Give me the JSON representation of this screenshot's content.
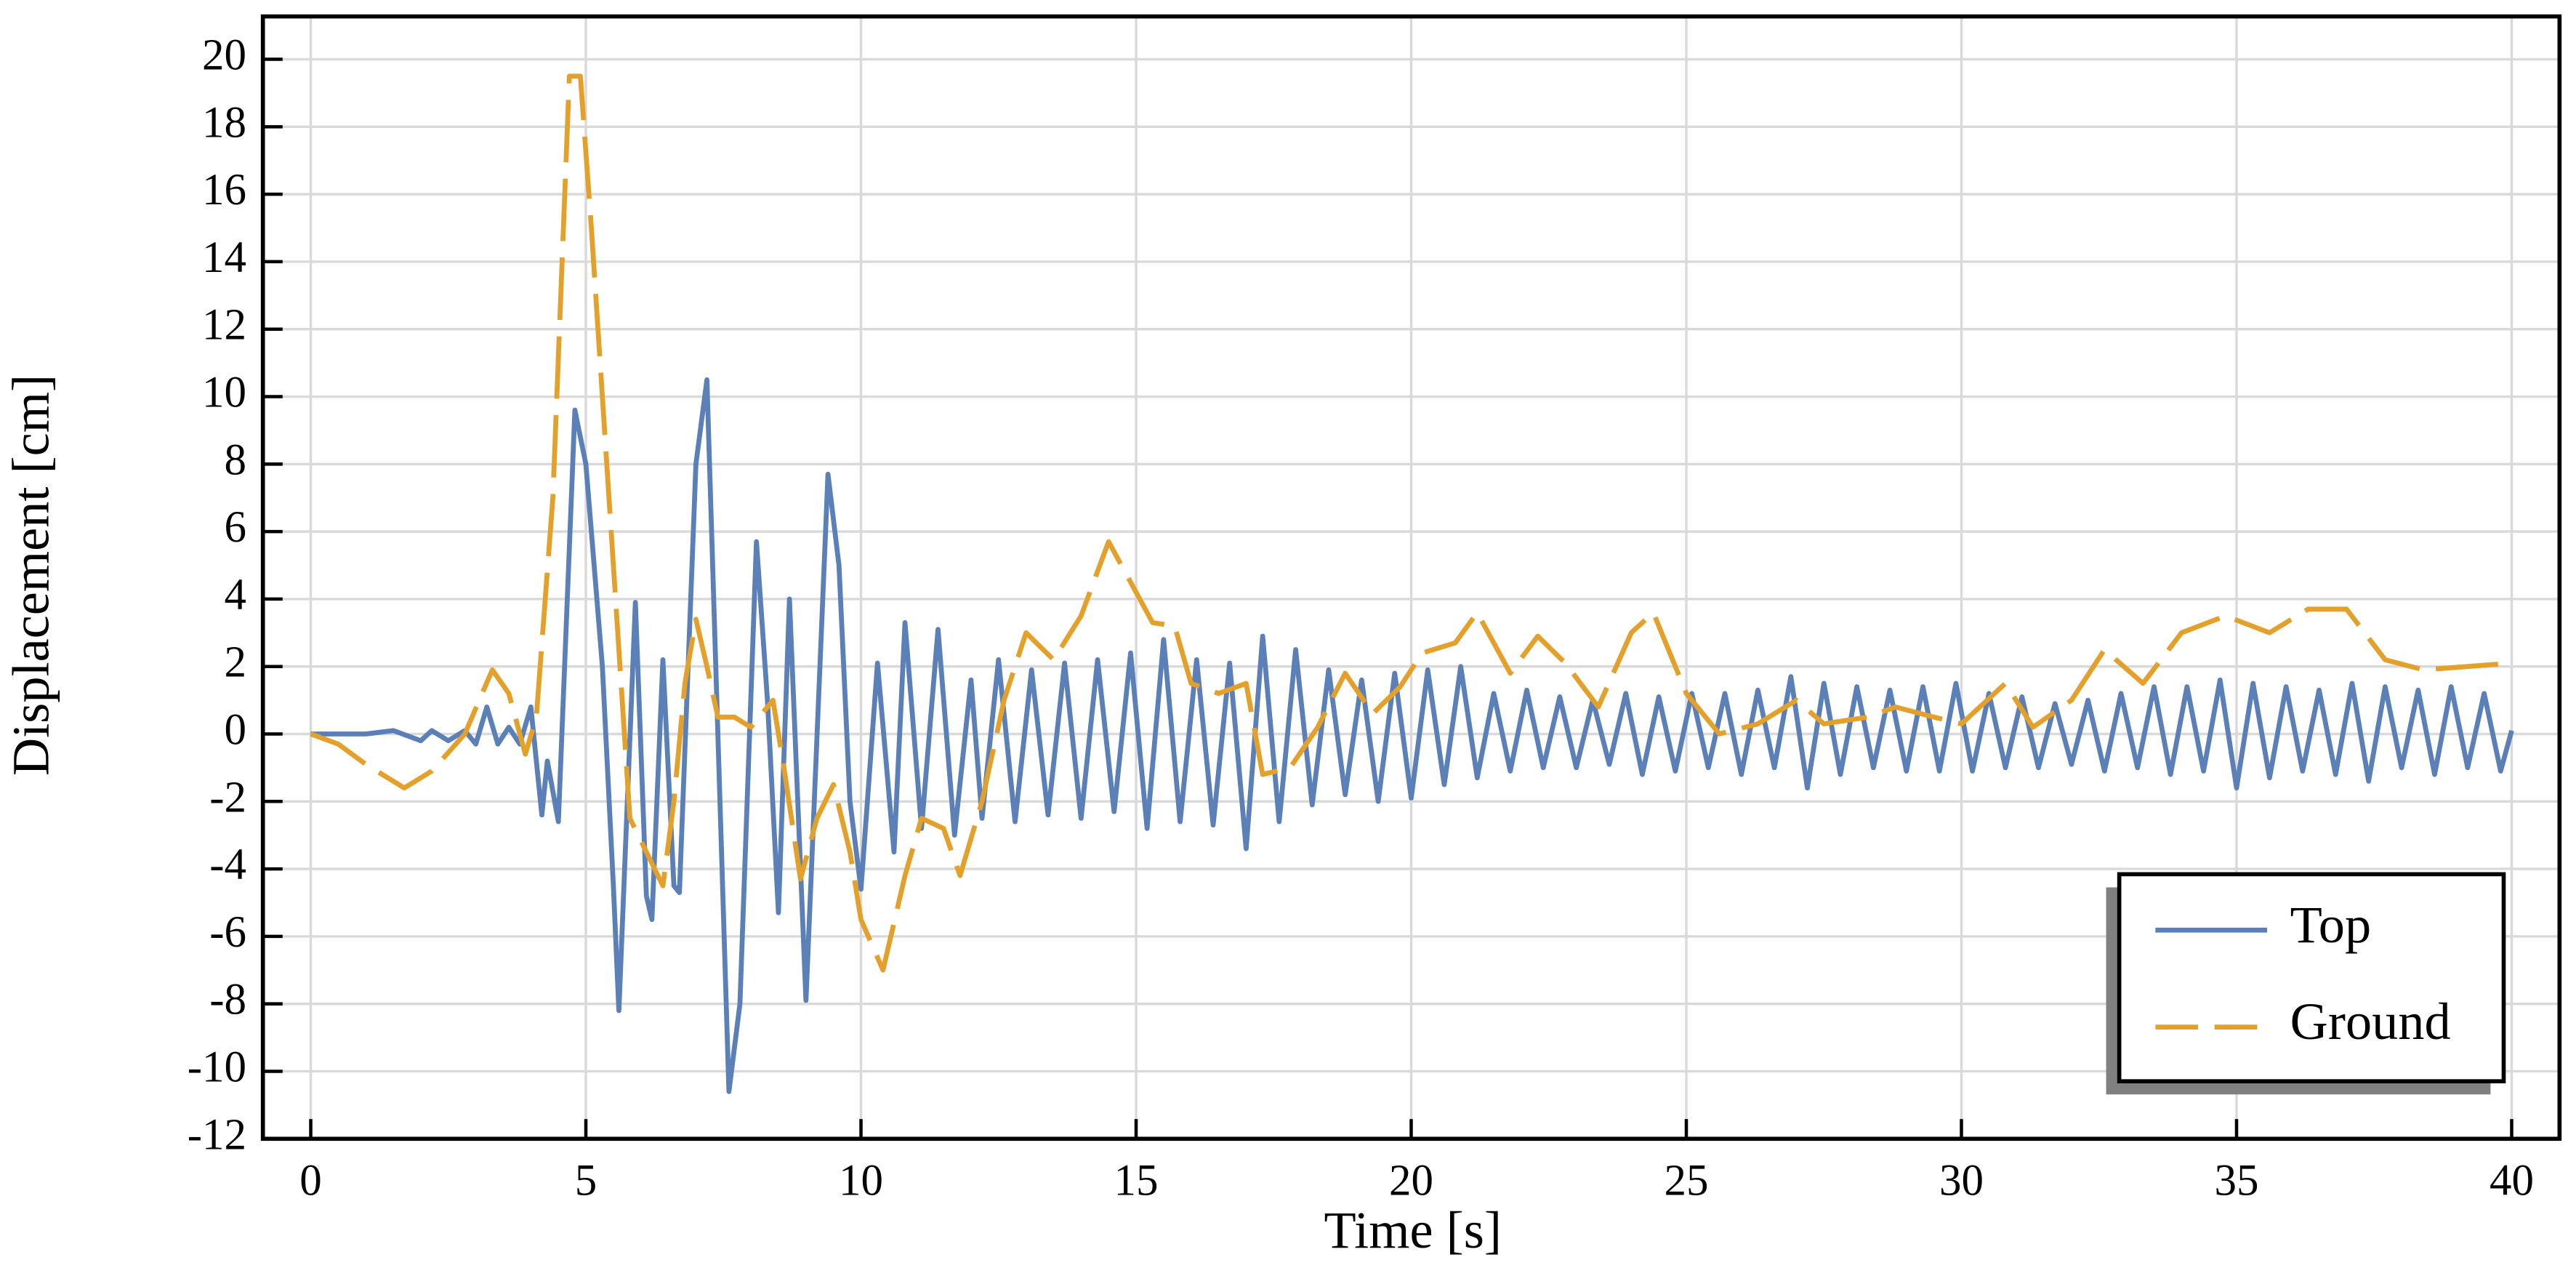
{
  "chart_data": {
    "type": "line",
    "xlabel": "Time [s]",
    "ylabel": "Displacement [cm]",
    "xlim": [
      -0.87,
      40.87
    ],
    "ylim": [
      -12,
      21.27
    ],
    "xticks": [
      0,
      5,
      10,
      15,
      20,
      25,
      30,
      35,
      40
    ],
    "yticks": [
      -12,
      -10,
      -8,
      -6,
      -4,
      -2,
      0,
      2,
      4,
      6,
      8,
      10,
      12,
      14,
      16,
      18,
      20
    ],
    "grid": true,
    "legend": "lower right",
    "series": [
      {
        "name": "Top",
        "color": "#5b80b8",
        "dash": false,
        "x": [
          0,
          1,
          1.5,
          2,
          2.2,
          2.5,
          2.8,
          3.0,
          3.2,
          3.4,
          3.6,
          3.8,
          4.0,
          4.2,
          4.3,
          4.5,
          4.8,
          5.0,
          5.3,
          5.5,
          5.6,
          5.9,
          6.1,
          6.2,
          6.4,
          6.6,
          6.7,
          7.0,
          7.2,
          7.6,
          7.8,
          8.1,
          8.3,
          8.5,
          8.7,
          9.0,
          9.4,
          9.6,
          9.8,
          10.0,
          10.3,
          10.6,
          10.8,
          11.1,
          11.4,
          11.7,
          12.0,
          12.2,
          12.5,
          12.8,
          13.1,
          13.4,
          13.7,
          14.0,
          14.3,
          14.6,
          14.9,
          15.2,
          15.5,
          15.8,
          16.1,
          16.4,
          16.7,
          17.0,
          17.3,
          17.6,
          17.9,
          18.2,
          18.5,
          18.8,
          19.1,
          19.4,
          19.7,
          20.0,
          20.3,
          20.6,
          20.9,
          21.2,
          21.5,
          21.8,
          22.1,
          22.4,
          22.7,
          23.0,
          23.3,
          23.6,
          23.9,
          24.2,
          24.5,
          24.8,
          25.1,
          25.4,
          25.7,
          26.0,
          26.3,
          26.6,
          26.9,
          27.2,
          27.5,
          27.8,
          28.1,
          28.4,
          28.7,
          29.0,
          29.3,
          29.6,
          29.9,
          30.2,
          30.5,
          30.8,
          31.1,
          31.4,
          31.7,
          32.0,
          32.3,
          32.6,
          32.9,
          33.2,
          33.5,
          33.8,
          34.1,
          34.4,
          34.7,
          35.0,
          35.3,
          35.6,
          35.9,
          36.2,
          36.5,
          36.8,
          37.1,
          37.4,
          37.7,
          38.0,
          38.3,
          38.6,
          38.9,
          39.2,
          39.5,
          39.8,
          40
        ],
        "values": [
          0,
          0,
          0.1,
          -0.2,
          0.1,
          -0.2,
          0.1,
          -0.3,
          0.8,
          -0.3,
          0.2,
          -0.3,
          0.8,
          -2.4,
          -0.8,
          -2.6,
          9.6,
          8,
          2,
          -4.5,
          -8.2,
          3.9,
          -4.8,
          -5.5,
          2.2,
          -4.5,
          -4.7,
          8,
          10.5,
          -10.6,
          -8,
          5.7,
          1,
          -5.3,
          4.0,
          -7.9,
          7.7,
          5,
          -2,
          -4.6,
          2.1,
          -3.5,
          3.3,
          -2.8,
          3.1,
          -3,
          1.6,
          -2.5,
          2.2,
          -2.6,
          1.9,
          -2.4,
          2.1,
          -2.5,
          2.2,
          -2.3,
          2.4,
          -2.8,
          2.8,
          -2.6,
          2.2,
          -2.7,
          2.1,
          -3.4,
          2.9,
          -2.6,
          2.5,
          -2.1,
          1.9,
          -1.8,
          1.6,
          -2.0,
          1.8,
          -1.9,
          1.9,
          -1.5,
          2.0,
          -1.3,
          1.2,
          -1.1,
          1.3,
          -1.0,
          1.1,
          -1.0,
          1.0,
          -0.9,
          1.2,
          -1.2,
          1.1,
          -1.1,
          1.2,
          -1.0,
          1.2,
          -1.2,
          1.3,
          -1.0,
          1.7,
          -1.6,
          1.5,
          -1.2,
          1.4,
          -1.0,
          1.3,
          -1.1,
          1.4,
          -1.1,
          1.5,
          -1.1,
          1.2,
          -1.0,
          1.1,
          -1.0,
          0.9,
          -0.9,
          1.0,
          -1.1,
          1.2,
          -1.0,
          1.4,
          -1.2,
          1.4,
          -1.1,
          1.6,
          -1.6,
          1.5,
          -1.3,
          1.4,
          -1.1,
          1.3,
          -1.2,
          1.5,
          -1.4,
          1.4,
          -1.0,
          1.3,
          -1.2,
          1.4,
          -1.0,
          1.2,
          -1.1,
          0.1
        ]
      },
      {
        "name": "Ground",
        "color": "#e3a02b",
        "dash": true,
        "x": [
          0,
          0.5,
          1,
          1.7,
          2.2,
          2.8,
          3.3,
          3.6,
          3.9,
          4.1,
          4.4,
          4.7,
          4.9,
          5.1,
          5.5,
          5.8,
          6.1,
          6.4,
          6.6,
          6.8,
          7.0,
          7.2,
          7.4,
          7.7,
          8.0,
          8.4,
          8.6,
          8.9,
          9.2,
          9.5,
          9.8,
          10.0,
          10.4,
          10.8,
          11.1,
          11.5,
          11.8,
          12.2,
          12.6,
          13.0,
          13.5,
          14.0,
          14.5,
          15.0,
          15.3,
          15.7,
          16.0,
          16.5,
          17.0,
          17.3,
          17.8,
          18.3,
          18.8,
          19.3,
          19.8,
          20.2,
          20.8,
          21.2,
          21.8,
          22.3,
          22.8,
          23.4,
          24.0,
          24.4,
          25.0,
          25.6,
          26.3,
          27.0,
          27.5,
          28.3,
          28.8,
          29.5,
          30.0,
          30.8,
          31.3,
          32.0,
          32.6,
          33.3,
          34.0,
          34.8,
          35.6,
          36.3,
          37.0,
          37.7,
          38.4,
          39.2,
          40
        ],
        "values": [
          0,
          -0.3,
          -0.9,
          -1.6,
          -1.1,
          0,
          1.9,
          1.2,
          -0.6,
          0.5,
          7,
          19.5,
          19.5,
          15,
          5,
          -2.5,
          -3.5,
          -4.5,
          -2,
          1.5,
          3.4,
          2,
          0.5,
          0.5,
          0.2,
          1,
          -1,
          -4.3,
          -2.5,
          -1.5,
          -3.5,
          -5.5,
          -7,
          -4.2,
          -2.5,
          -2.8,
          -4.2,
          -2,
          1,
          3,
          2.2,
          3.5,
          5.7,
          4.2,
          3.3,
          3.2,
          1.5,
          1.2,
          1.5,
          -1.2,
          -1,
          0.2,
          1.8,
          0.6,
          1.4,
          2.4,
          2.7,
          3.6,
          1.8,
          2.9,
          2.1,
          0.8,
          3,
          3.6,
          1.2,
          0,
          0.3,
          1.0,
          0.3,
          0.5,
          0.8,
          0.5,
          0.3,
          1.5,
          0.2,
          1,
          2.5,
          1.5,
          3,
          3.5,
          3,
          3.7,
          3.7,
          2.2,
          1.9,
          2.0,
          2.1
        ]
      }
    ]
  }
}
